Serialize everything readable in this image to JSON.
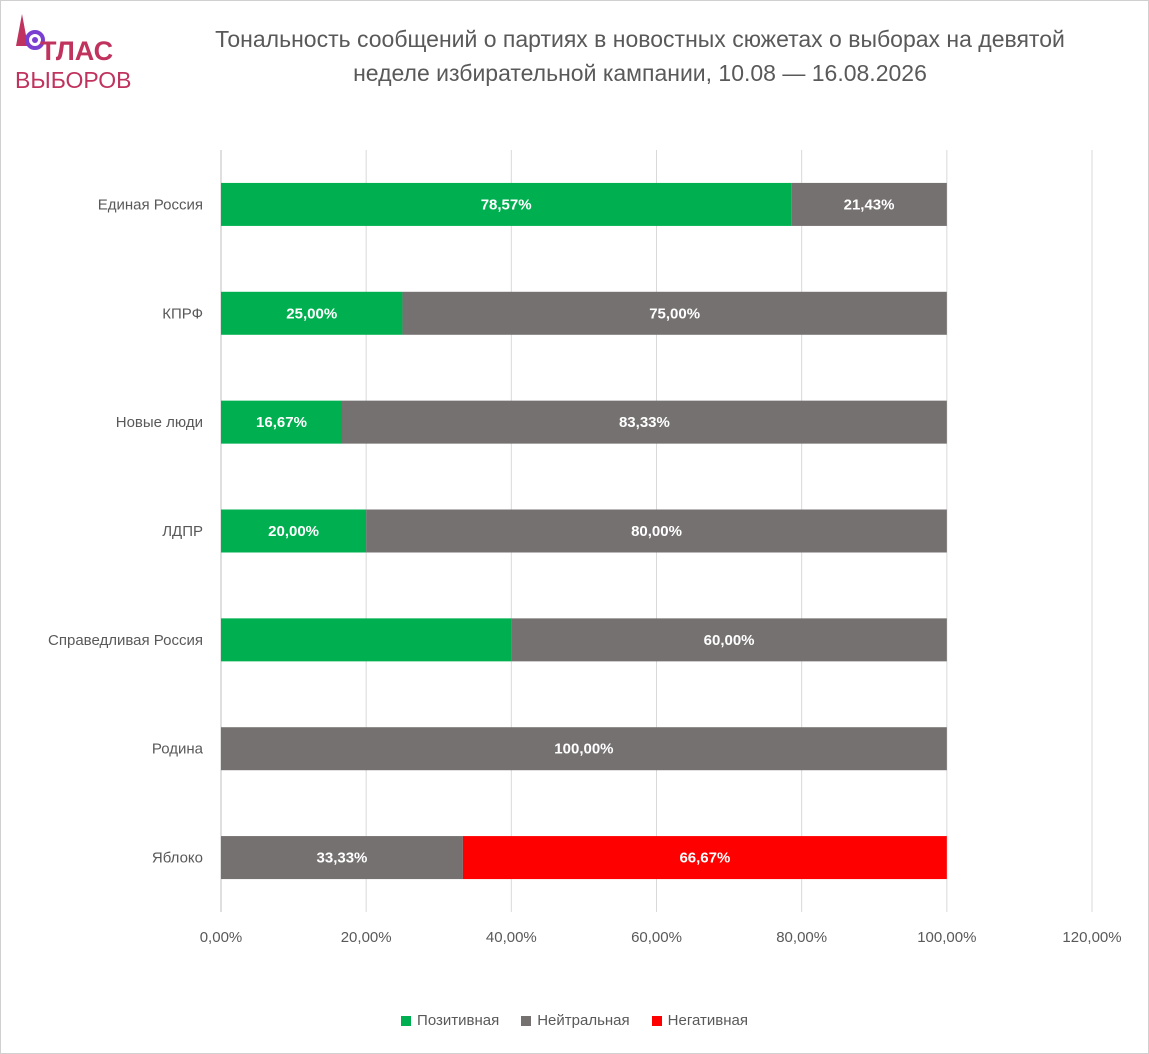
{
  "logo": {
    "top_text": "ТЛАС",
    "bottom_text": "ВЫБОРОВ",
    "color": "#c0335e",
    "accent": "#7a3fd1"
  },
  "chart_data": {
    "type": "bar",
    "orientation": "horizontal",
    "stacked": true,
    "title": "Тональность сообщений о партиях в новостных сюжетах о выборах на девятой неделе избирательной кампании, 10.08 — 16.08.2026",
    "xlabel": "",
    "ylabel": "",
    "xlim": [
      0,
      120
    ],
    "x_ticks": [
      "0,00%",
      "20,00%",
      "40,00%",
      "60,00%",
      "80,00%",
      "100,00%",
      "120,00%"
    ],
    "x_tick_values": [
      0,
      20,
      40,
      60,
      80,
      100,
      120
    ],
    "grid": true,
    "legend_position": "bottom",
    "categories": [
      "Единая Россия",
      "КПРФ",
      "Новые люди",
      "ЛДПР",
      "Справедливая Россия",
      "Родина",
      "Яблоко"
    ],
    "series": [
      {
        "name": "Позитивная",
        "color": "#00b050",
        "values": [
          78.57,
          25.0,
          16.67,
          20.0,
          40.0,
          0,
          0
        ],
        "labels": [
          "78,57%",
          "25,00%",
          "16,67%",
          "20,00%",
          "",
          "",
          ""
        ]
      },
      {
        "name": "Нейтральная",
        "color": "#767171",
        "values": [
          21.43,
          75.0,
          83.33,
          80.0,
          60.0,
          100.0,
          33.33
        ],
        "labels": [
          "21,43%",
          "75,00%",
          "83,33%",
          "80,00%",
          "60,00%",
          "100,00%",
          "33,33%"
        ]
      },
      {
        "name": "Негативная",
        "color": "#ff0000",
        "values": [
          0,
          0,
          0,
          0,
          0,
          0,
          66.67
        ],
        "labels": [
          "",
          "",
          "",
          "",
          "",
          "",
          "66,67%"
        ]
      }
    ]
  }
}
